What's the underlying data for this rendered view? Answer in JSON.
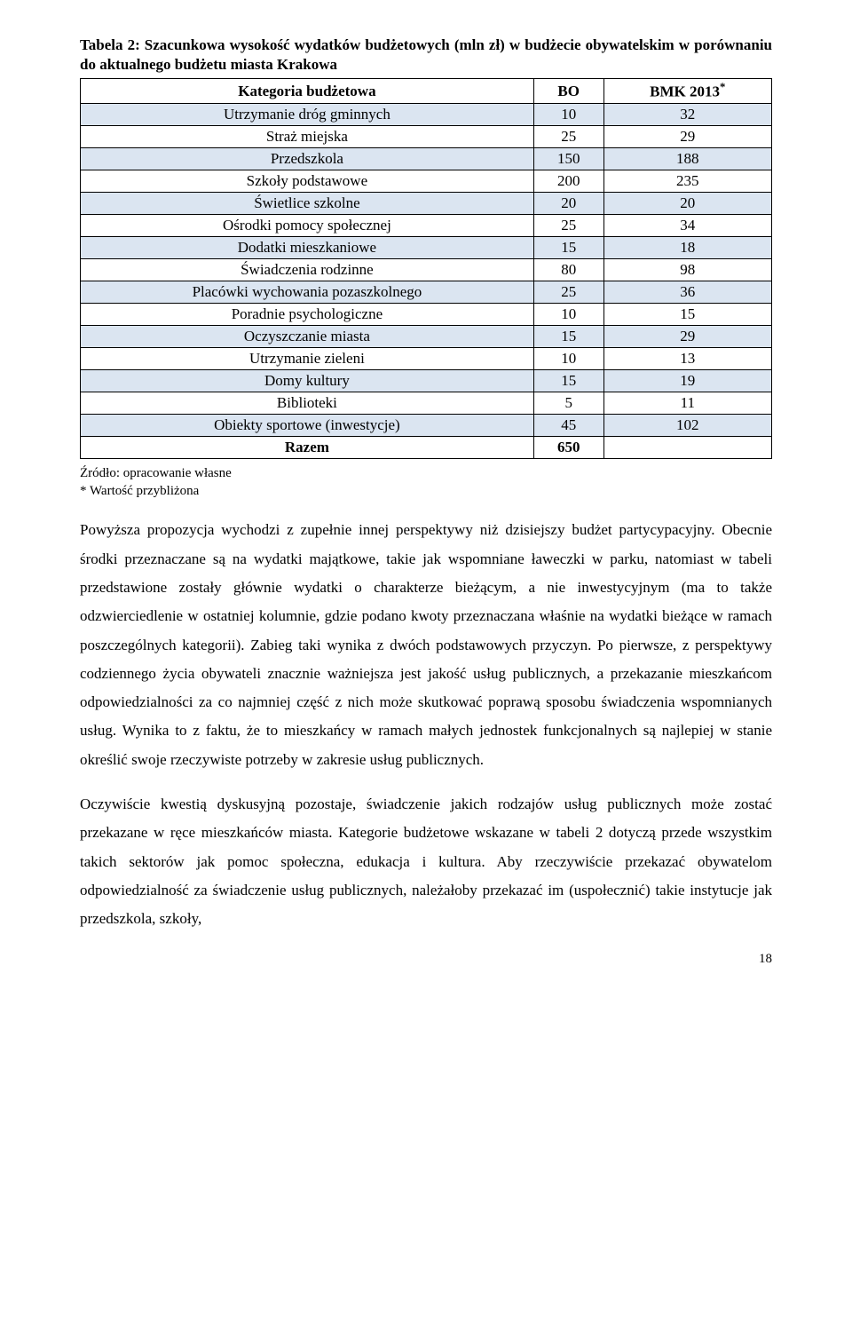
{
  "caption": "Tabela 2: Szacunkowa wysokość wydatków budżetowych (mln zł) w budżecie obywatelskim w porównaniu do aktualnego budżetu miasta Krakowa",
  "table": {
    "columns": [
      "Kategoria budżetowa",
      "BO",
      "BMK 2013"
    ],
    "col_suffix_sup": "*",
    "rows": [
      {
        "cat": "Utrzymanie dróg gminnych",
        "bo": "10",
        "bmk": "32",
        "shaded": true
      },
      {
        "cat": "Straż miejska",
        "bo": "25",
        "bmk": "29",
        "shaded": false
      },
      {
        "cat": "Przedszkola",
        "bo": "150",
        "bmk": "188",
        "shaded": true
      },
      {
        "cat": "Szkoły podstawowe",
        "bo": "200",
        "bmk": "235",
        "shaded": false
      },
      {
        "cat": "Świetlice szkolne",
        "bo": "20",
        "bmk": "20",
        "shaded": true
      },
      {
        "cat": "Ośrodki pomocy społecznej",
        "bo": "25",
        "bmk": "34",
        "shaded": false
      },
      {
        "cat": "Dodatki mieszkaniowe",
        "bo": "15",
        "bmk": "18",
        "shaded": true
      },
      {
        "cat": "Świadczenia rodzinne",
        "bo": "80",
        "bmk": "98",
        "shaded": false
      },
      {
        "cat": "Placówki wychowania pozaszkolnego",
        "bo": "25",
        "bmk": "36",
        "shaded": true
      },
      {
        "cat": "Poradnie psychologiczne",
        "bo": "10",
        "bmk": "15",
        "shaded": false
      },
      {
        "cat": "Oczyszczanie miasta",
        "bo": "15",
        "bmk": "29",
        "shaded": true
      },
      {
        "cat": "Utrzymanie zieleni",
        "bo": "10",
        "bmk": "13",
        "shaded": false
      },
      {
        "cat": "Domy kultury",
        "bo": "15",
        "bmk": "19",
        "shaded": true
      },
      {
        "cat": "Biblioteki",
        "bo": "5",
        "bmk": "11",
        "shaded": false
      },
      {
        "cat": "Obiekty sportowe (inwestycje)",
        "bo": "45",
        "bmk": "102",
        "shaded": true
      }
    ],
    "total": {
      "label": "Razem",
      "bo": "650",
      "bmk": ""
    },
    "shaded_color": "#dbe5f1",
    "border_color": "#000000"
  },
  "footnotes": {
    "line1": "Źródło: opracowanie własne",
    "line2": "* Wartość przybliżona"
  },
  "paragraphs": {
    "p1": "Powyższa propozycja wychodzi z zupełnie innej perspektywy niż dzisiejszy budżet partycypacyjny. Obecnie środki przeznaczane są na wydatki majątkowe, takie jak wspomniane ławeczki w parku, natomiast w tabeli przedstawione zostały głównie wydatki o charakterze bieżącym, a nie inwestycyjnym (ma to także odzwierciedlenie w ostatniej kolumnie, gdzie podano kwoty przeznaczana właśnie na wydatki bieżące w ramach poszczególnych kategorii). Zabieg taki wynika z dwóch podstawowych przyczyn. Po pierwsze, z perspektywy codziennego życia obywateli znacznie ważniejsza jest jakość usług publicznych, a przekazanie mieszkańcom odpowiedzialności za co najmniej część z nich może skutkować poprawą sposobu świadczenia wspomnianych usług. Wynika to z faktu, że to mieszkańcy w ramach małych jednostek funkcjonalnych są najlepiej w stanie określić swoje rzeczywiste potrzeby w zakresie usług publicznych.",
    "p2": "Oczywiście kwestią dyskusyjną pozostaje, świadczenie jakich rodzajów usług publicznych może zostać przekazane w ręce mieszkańców miasta. Kategorie budżetowe wskazane w tabeli 2 dotyczą przede wszystkim takich sektorów jak pomoc społeczna, edukacja i kultura. Aby rzeczywiście przekazać obywatelom odpowiedzialność za świadczenie usług publicznych, należałoby przekazać im (uspołecznić) takie instytucje jak przedszkola, szkoły,"
  },
  "page_number": "18"
}
